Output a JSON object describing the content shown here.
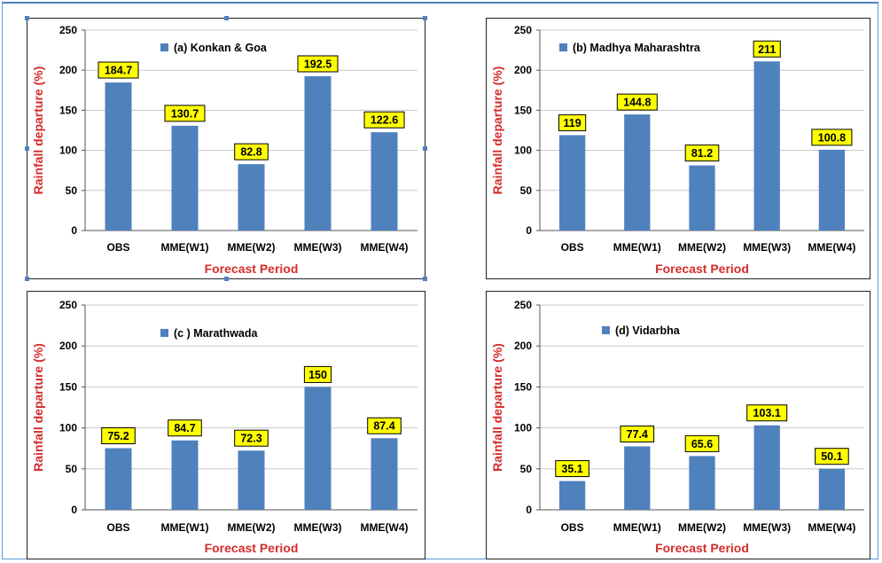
{
  "chart_data": [
    {
      "type": "bar",
      "legend": "(a) Konkan & Goa",
      "categories": [
        "OBS",
        "MME(W1)",
        "MME(W2)",
        "MME(W3)",
        "MME(W4)"
      ],
      "values": [
        184.7,
        130.7,
        82.8,
        192.5,
        122.6
      ],
      "data_labels": [
        "184.7",
        "130.7",
        "82.8",
        "192.5",
        "122.6"
      ],
      "xlabel": "Forecast Period",
      "ylabel": "Rainfall departure (%)",
      "ylim": [
        0,
        250
      ],
      "yticks": [
        "0",
        "50",
        "100",
        "150",
        "200",
        "250"
      ],
      "grid": true,
      "legend_position": "top-center",
      "bar_color": "#4f81bd",
      "label_bg": "#ffff00"
    },
    {
      "type": "bar",
      "legend": "(b) Madhya Maharashtra",
      "categories": [
        "OBS",
        "MME(W1)",
        "MME(W2)",
        "MME(W3)",
        "MME(W4)"
      ],
      "values": [
        119,
        144.8,
        81.2,
        211,
        100.8
      ],
      "data_labels": [
        "119",
        "144.8",
        "81.2",
        "211",
        "100.8"
      ],
      "xlabel": "Forecast Period",
      "ylabel": "Rainfall departure (%)",
      "ylim": [
        0,
        250
      ],
      "yticks": [
        "0",
        "50",
        "100",
        "150",
        "200",
        "250"
      ],
      "grid": true,
      "legend_position": "top-left",
      "bar_color": "#4f81bd",
      "label_bg": "#ffff00"
    },
    {
      "type": "bar",
      "legend": "(c ) Marathwada",
      "categories": [
        "OBS",
        "MME(W1)",
        "MME(W2)",
        "MME(W3)",
        "MME(W4)"
      ],
      "values": [
        75.2,
        84.7,
        72.3,
        150,
        87.4
      ],
      "data_labels": [
        "75.2",
        "84.7",
        "72.3",
        "150",
        "87.4"
      ],
      "xlabel": "Forecast Period",
      "ylabel": "Rainfall departure (%)",
      "ylim": [
        0,
        250
      ],
      "yticks": [
        "0",
        "50",
        "100",
        "150",
        "200",
        "250"
      ],
      "grid": true,
      "legend_position": "top-left",
      "bar_color": "#4f81bd",
      "label_bg": "#ffff00"
    },
    {
      "type": "bar",
      "legend": "(d) Vidarbha",
      "categories": [
        "OBS",
        "MME(W1)",
        "MME(W2)",
        "MME(W3)",
        "MME(W4)"
      ],
      "values": [
        35.1,
        77.4,
        65.6,
        103.1,
        50.1
      ],
      "data_labels": [
        "35.1",
        "77.4",
        "65.6",
        "103.1",
        "50.1"
      ],
      "xlabel": "Forecast Period",
      "ylabel": "Rainfall departure (%)",
      "ylim": [
        0,
        250
      ],
      "yticks": [
        "0",
        "50",
        "100",
        "150",
        "200",
        "250"
      ],
      "grid": true,
      "legend_position": "top-left",
      "bar_color": "#4f81bd",
      "label_bg": "#ffff00"
    }
  ]
}
